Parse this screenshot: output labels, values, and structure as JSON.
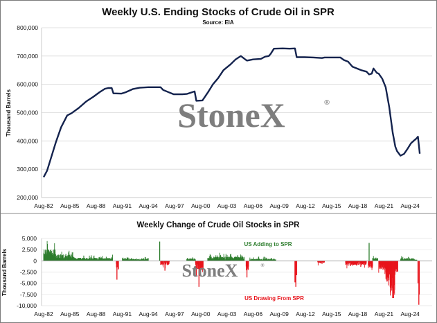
{
  "chart_data": [
    {
      "type": "line",
      "title": "Weekly U.S. Ending Stocks of Crude Oil in SPR",
      "subtitle": "Source: EIA",
      "ylabel": "Thousand Barrels",
      "xlabel": "",
      "ylim": [
        200000,
        800000
      ],
      "yticks": [
        200000,
        300000,
        400000,
        500000,
        600000,
        700000,
        800000
      ],
      "xticks": [
        "Aug-82",
        "Aug-85",
        "Aug-88",
        "Aug-91",
        "Aug-94",
        "Aug-97",
        "Aug-00",
        "Aug-03",
        "Aug-06",
        "Aug-09",
        "Aug-12",
        "Aug-15",
        "Aug-18",
        "Aug-21",
        "Aug-24"
      ],
      "grid": true,
      "line_color": "#14234e",
      "x": [
        1982.6,
        1983.0,
        1983.5,
        1984.0,
        1984.6,
        1985.3,
        1985.8,
        1986.6,
        1987.5,
        1988.3,
        1989.0,
        1989.6,
        1990.0,
        1990.4,
        1990.6,
        1991.5,
        1992.0,
        1992.8,
        1993.6,
        1994.6,
        1995.6,
        1996.0,
        1996.3,
        1997.5,
        1998.5,
        1999.0,
        1999.6,
        1999.9,
        2000.1,
        2000.8,
        2001.5,
        2002.0,
        2002.6,
        2003.2,
        2004.0,
        2004.6,
        2005.2,
        2005.7,
        2005.9,
        2006.6,
        2007.5,
        2008.0,
        2008.4,
        2008.6,
        2009.0,
        2010.0,
        2010.8,
        2011.4,
        2011.6,
        2012.5,
        2013.5,
        2014.5,
        2014.8,
        2015.6,
        2016.6,
        2017.0,
        2017.5,
        2018.0,
        2018.5,
        2019.0,
        2019.6,
        2019.9,
        2020.2,
        2020.4,
        2020.8,
        2021.0,
        2021.4,
        2021.8,
        2022.2,
        2022.6,
        2022.9,
        2023.1,
        2023.5,
        2023.9,
        2024.3,
        2024.7,
        2025.0,
        2025.3,
        2025.5,
        2025.7
      ],
      "y": [
        272000,
        295000,
        345000,
        395000,
        448000,
        490000,
        498000,
        516000,
        540000,
        556000,
        572000,
        584000,
        587000,
        587000,
        568000,
        567000,
        572000,
        583000,
        588000,
        590000,
        590000,
        590000,
        580000,
        565000,
        565000,
        566000,
        572000,
        575000,
        542000,
        543000,
        575000,
        600000,
        622000,
        650000,
        670000,
        688000,
        700000,
        688000,
        684000,
        688000,
        690000,
        698000,
        700000,
        707000,
        726000,
        727000,
        726000,
        727000,
        696000,
        696000,
        695000,
        693000,
        695000,
        695000,
        695000,
        686000,
        680000,
        662000,
        656000,
        650000,
        645000,
        635000,
        638000,
        656000,
        640000,
        638000,
        620000,
        590000,
        520000,
        430000,
        380000,
        364000,
        348000,
        354000,
        372000,
        392000,
        400000,
        408000,
        415000,
        355000
      ]
    },
    {
      "type": "bar",
      "title": "Weekly Change of Crude Oil Stocks in SPR",
      "ylabel": "Thousand Barrels",
      "ylim": [
        -10000,
        5000
      ],
      "yticks": [
        5000,
        2500,
        0,
        -2500,
        -5000,
        -7500,
        -10000
      ],
      "xticks": [
        "Aug-82",
        "Aug-85",
        "Aug-88",
        "Aug-91",
        "Aug-94",
        "Aug-97",
        "Aug-00",
        "Aug-03",
        "Aug-06",
        "Aug-09",
        "Aug-12",
        "Aug-15",
        "Aug-18",
        "Aug-21",
        "Aug-24"
      ],
      "positive_color": "#2d7d2d",
      "negative_color": "#e8141c",
      "annotations": [
        {
          "text": "US Adding to SPR",
          "color": "#2d7d2d"
        },
        {
          "text": "US Drawing From SPR",
          "color": "#e8141c"
        }
      ],
      "segments": [
        {
          "start": 1982.6,
          "end": 1984.0,
          "sign": "pos",
          "base": 1900,
          "jitter": 2300
        },
        {
          "start": 1984.0,
          "end": 1986.0,
          "sign": "pos",
          "base": 1100,
          "jitter": 1300
        },
        {
          "start": 1986.0,
          "end": 1990.5,
          "sign": "pos",
          "base": 500,
          "jitter": 700
        },
        {
          "start": 1990.9,
          "end": 1991.2,
          "sign": "neg",
          "base": 1500,
          "jitter": 1300
        },
        {
          "start": 1991.6,
          "end": 1994.6,
          "sign": "pos",
          "base": 350,
          "jitter": 450
        },
        {
          "start": 1996.0,
          "end": 1997.0,
          "sign": "neg",
          "base": 700,
          "jitter": 800
        },
        {
          "start": 1999.0,
          "end": 2000.0,
          "sign": "pos",
          "base": 400,
          "jitter": 500
        },
        {
          "start": 2000.0,
          "end": 2000.9,
          "sign": "neg",
          "base": 1500,
          "jitter": 1600
        },
        {
          "start": 2001.4,
          "end": 2005.6,
          "sign": "pos",
          "base": 700,
          "jitter": 1000
        },
        {
          "start": 2005.8,
          "end": 2006.1,
          "sign": "neg",
          "base": 1600,
          "jitter": 1200
        },
        {
          "start": 2006.2,
          "end": 2009.2,
          "sign": "pos",
          "base": 350,
          "jitter": 600
        },
        {
          "start": 2014.0,
          "end": 2014.8,
          "sign": "neg",
          "base": 400,
          "jitter": 700
        },
        {
          "start": 2017.2,
          "end": 2019.6,
          "sign": "neg",
          "base": 700,
          "jitter": 1100
        },
        {
          "start": 2019.8,
          "end": 2020.3,
          "sign": "neg",
          "base": 1200,
          "jitter": 900
        },
        {
          "start": 2020.3,
          "end": 2020.9,
          "sign": "pos",
          "base": 500,
          "jitter": 700
        },
        {
          "start": 2021.0,
          "end": 2021.8,
          "sign": "neg",
          "base": 1400,
          "jitter": 1300
        },
        {
          "start": 2021.8,
          "end": 2022.3,
          "sign": "neg",
          "base": 3500,
          "jitter": 2000
        },
        {
          "start": 2022.3,
          "end": 2022.9,
          "sign": "neg",
          "base": 5700,
          "jitter": 2300
        },
        {
          "start": 2022.9,
          "end": 2023.2,
          "sign": "neg",
          "base": 2000,
          "jitter": 1500
        },
        {
          "start": 2023.5,
          "end": 2025.0,
          "sign": "pos",
          "base": 450,
          "jitter": 700
        },
        {
          "start": 2025.0,
          "end": 2025.4,
          "sign": "pos",
          "base": 200,
          "jitter": 300
        }
      ],
      "spikes": [
        {
          "x": 1995.9,
          "v": 4300
        },
        {
          "x": 2019.9,
          "v": 4000
        },
        {
          "x": 1991.0,
          "v": -4200
        },
        {
          "x": 1996.5,
          "v": -2200
        },
        {
          "x": 2000.1,
          "v": -3300
        },
        {
          "x": 2000.4,
          "v": -5800
        },
        {
          "x": 2005.9,
          "v": -3700
        },
        {
          "x": 2011.4,
          "v": -4800
        },
        {
          "x": 2011.5,
          "v": -5800
        },
        {
          "x": 2011.6,
          "v": -3200
        },
        {
          "x": 2022.6,
          "v": -8300
        },
        {
          "x": 2022.7,
          "v": -8300
        },
        {
          "x": 2025.5,
          "v": -5000
        },
        {
          "x": 2025.6,
          "v": -9800
        },
        {
          "x": 2025.65,
          "v": -7500
        }
      ]
    }
  ],
  "watermark": "StoneX",
  "watermark_mark": "®"
}
